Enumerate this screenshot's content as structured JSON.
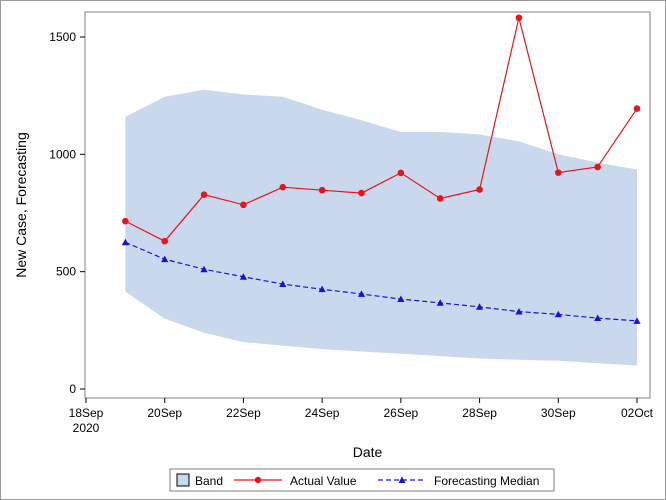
{
  "chart_data": {
    "type": "line",
    "title": "",
    "xlabel": "Date",
    "ylabel": "New Case, Forecasting",
    "x_tick_labels": [
      {
        "date": "2020-09-18",
        "lines": [
          "18Sep",
          "2020"
        ]
      },
      {
        "date": "2020-09-20",
        "lines": [
          "20Sep"
        ]
      },
      {
        "date": "2020-09-22",
        "lines": [
          "22Sep"
        ]
      },
      {
        "date": "2020-09-24",
        "lines": [
          "24Sep"
        ]
      },
      {
        "date": "2020-09-26",
        "lines": [
          "26Sep"
        ]
      },
      {
        "date": "2020-09-28",
        "lines": [
          "28Sep"
        ]
      },
      {
        "date": "2020-09-30",
        "lines": [
          "30Sep"
        ]
      },
      {
        "date": "2020-10-02",
        "lines": [
          "02Oct"
        ]
      }
    ],
    "xlim": [
      "2020-09-18",
      "2020-10-02"
    ],
    "y_ticks": [
      0,
      500,
      1000,
      1500
    ],
    "ylim": [
      -40,
      1600
    ],
    "grid": false,
    "legend_position": "bottom",
    "x": [
      "2020-09-19",
      "2020-09-20",
      "2020-09-21",
      "2020-09-22",
      "2020-09-23",
      "2020-09-24",
      "2020-09-25",
      "2020-09-26",
      "2020-09-27",
      "2020-09-28",
      "2020-09-29",
      "2020-09-30",
      "2020-10-01",
      "2020-10-02"
    ],
    "band": {
      "name": "Band",
      "color": "#c9d8ec",
      "lower": [
        415,
        300,
        240,
        200,
        185,
        170,
        160,
        150,
        140,
        130,
        125,
        120,
        110,
        100
      ],
      "upper": [
        1160,
        1245,
        1275,
        1255,
        1245,
        1190,
        1145,
        1095,
        1095,
        1085,
        1055,
        1000,
        965,
        935
      ]
    },
    "series": [
      {
        "name": "Actual Value",
        "color": "#e8141c",
        "marker": "circle",
        "line": "solid",
        "values": [
          715,
          630,
          828,
          785,
          860,
          847,
          835,
          921,
          812,
          850,
          1582,
          922,
          946,
          1195
        ]
      },
      {
        "name": "Forecasting Median",
        "color": "#1414d2",
        "marker": "triangle",
        "line": "dashed",
        "values": [
          625,
          553,
          510,
          478,
          447,
          425,
          405,
          383,
          367,
          350,
          330,
          318,
          302,
          290
        ]
      }
    ]
  }
}
